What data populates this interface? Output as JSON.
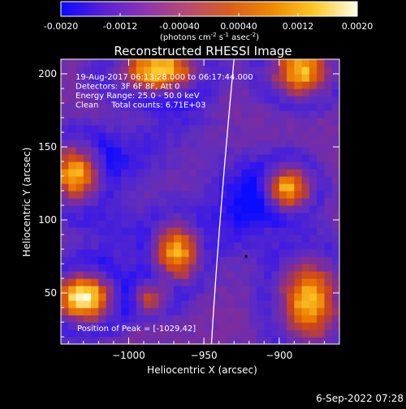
{
  "colorbar": {
    "ticks": [
      -0.002,
      -0.0012,
      -0.0004,
      0.0004,
      0.0012,
      0.002
    ],
    "tick_labels": [
      "-0.0020",
      "-0.0012",
      "-0.00040",
      "0.00040",
      "0.0012",
      "0.0020"
    ],
    "unit_main": "(photons cm",
    "unit_exp1": "-2",
    "unit_mid": " s",
    "unit_exp2": "-1",
    "unit_mid2": " asec",
    "unit_exp3": "-2",
    "unit_end": ")",
    "colors": [
      "#0b0bff",
      "#5a1fd6",
      "#8e35b0",
      "#b84b70",
      "#d85e1c",
      "#ef8a00",
      "#fcc92a",
      "#fffde8"
    ]
  },
  "chart_data": {
    "type": "heatmap",
    "title": "Reconstructed RHESSI Image",
    "xlabel": "Heliocentric X (arcsec)",
    "ylabel": "Heliocentric Y (arcsec)",
    "xlim": [
      -1045,
      -860
    ],
    "ylim": [
      15,
      210
    ],
    "x_ticks": [
      -1000,
      -950,
      -900
    ],
    "x_tick_labels": [
      "−1000",
      "−950",
      "−900"
    ],
    "y_ticks": [
      50,
      100,
      150,
      200
    ],
    "y_tick_labels": [
      "50",
      "100",
      "150",
      "200"
    ],
    "value_range": [
      -0.002,
      0.002
    ],
    "info_lines": [
      "19-Aug-2017 06:13:28.000 to 06:17:44.000",
      "Detectors: 3F 6F 8F, Att 0",
      "Energy Range: 25.0 - 50.0 keV",
      "Clean     Total counts: 6.71E+03"
    ],
    "peak_label": "Position of Peak = [-1029,42]",
    "peak_position": [
      -1029,
      42
    ],
    "limb_points": [
      [
        -945,
        15
      ],
      [
        -940,
        100
      ],
      [
        -930,
        210
      ]
    ],
    "sources": [
      {
        "x": -980,
        "y": 203,
        "sx": 18,
        "sy": 11,
        "amp": 1.05
      },
      {
        "x": -1035,
        "y": 132,
        "sx": 12,
        "sy": 14,
        "amp": 0.95
      },
      {
        "x": -1030,
        "y": 47,
        "sx": 14,
        "sy": 12,
        "amp": 1.25
      },
      {
        "x": -968,
        "y": 78,
        "sx": 11,
        "sy": 15,
        "amp": 0.85
      },
      {
        "x": -985,
        "y": 48,
        "sx": 9,
        "sy": 8,
        "amp": 0.6
      },
      {
        "x": -895,
        "y": 122,
        "sx": 11,
        "sy": 11,
        "amp": 0.95
      },
      {
        "x": -885,
        "y": 202,
        "sx": 14,
        "sy": 12,
        "amp": 0.9
      },
      {
        "x": -880,
        "y": 45,
        "sx": 14,
        "sy": 20,
        "amp": 0.95
      },
      {
        "x": -925,
        "y": 110,
        "sx": 20,
        "sy": 28,
        "amp": -0.75
      },
      {
        "x": -1000,
        "y": 145,
        "sx": 25,
        "sy": 20,
        "amp": -0.45
      },
      {
        "x": -1010,
        "y": 90,
        "sx": 20,
        "sy": 18,
        "amp": -0.4
      },
      {
        "x": -965,
        "y": 170,
        "sx": 18,
        "sy": 15,
        "amp": -0.35
      }
    ]
  },
  "footer": {
    "timestamp": "6-Sep-2022 07:28"
  }
}
